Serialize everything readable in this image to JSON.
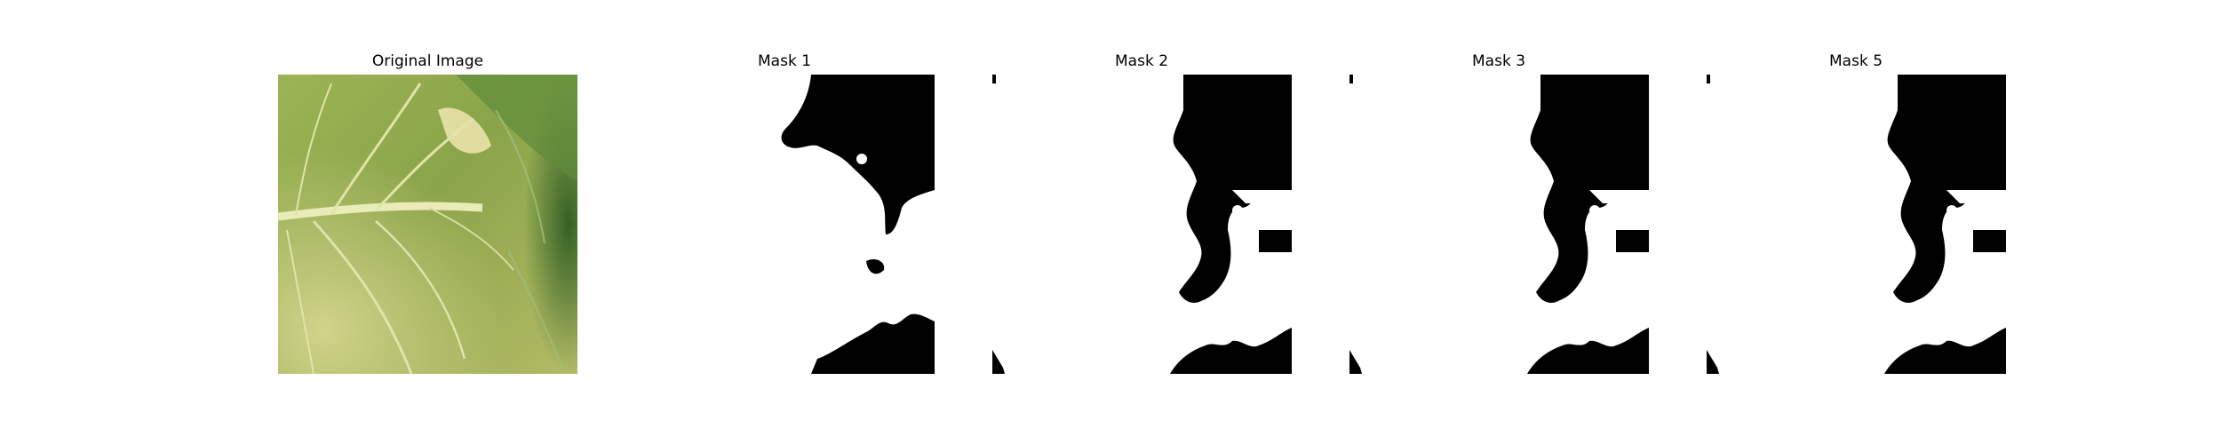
{
  "panels": [
    {
      "title": "Original Image",
      "content": "leaf-photo"
    },
    {
      "title": "Mask 1",
      "content": "binary-mask"
    },
    {
      "title": "Mask 2",
      "content": "binary-mask"
    },
    {
      "title": "Mask 3",
      "content": "binary-mask"
    },
    {
      "title": "Mask 5",
      "content": "binary-mask"
    }
  ],
  "colors": {
    "background": "#ffffff",
    "mask_foreground": "#000000",
    "mask_background": "#ffffff",
    "leaf_green": "#8aa84a",
    "leaf_yellow": "#d8d68a",
    "leaf_dark": "#3f6b2a"
  }
}
